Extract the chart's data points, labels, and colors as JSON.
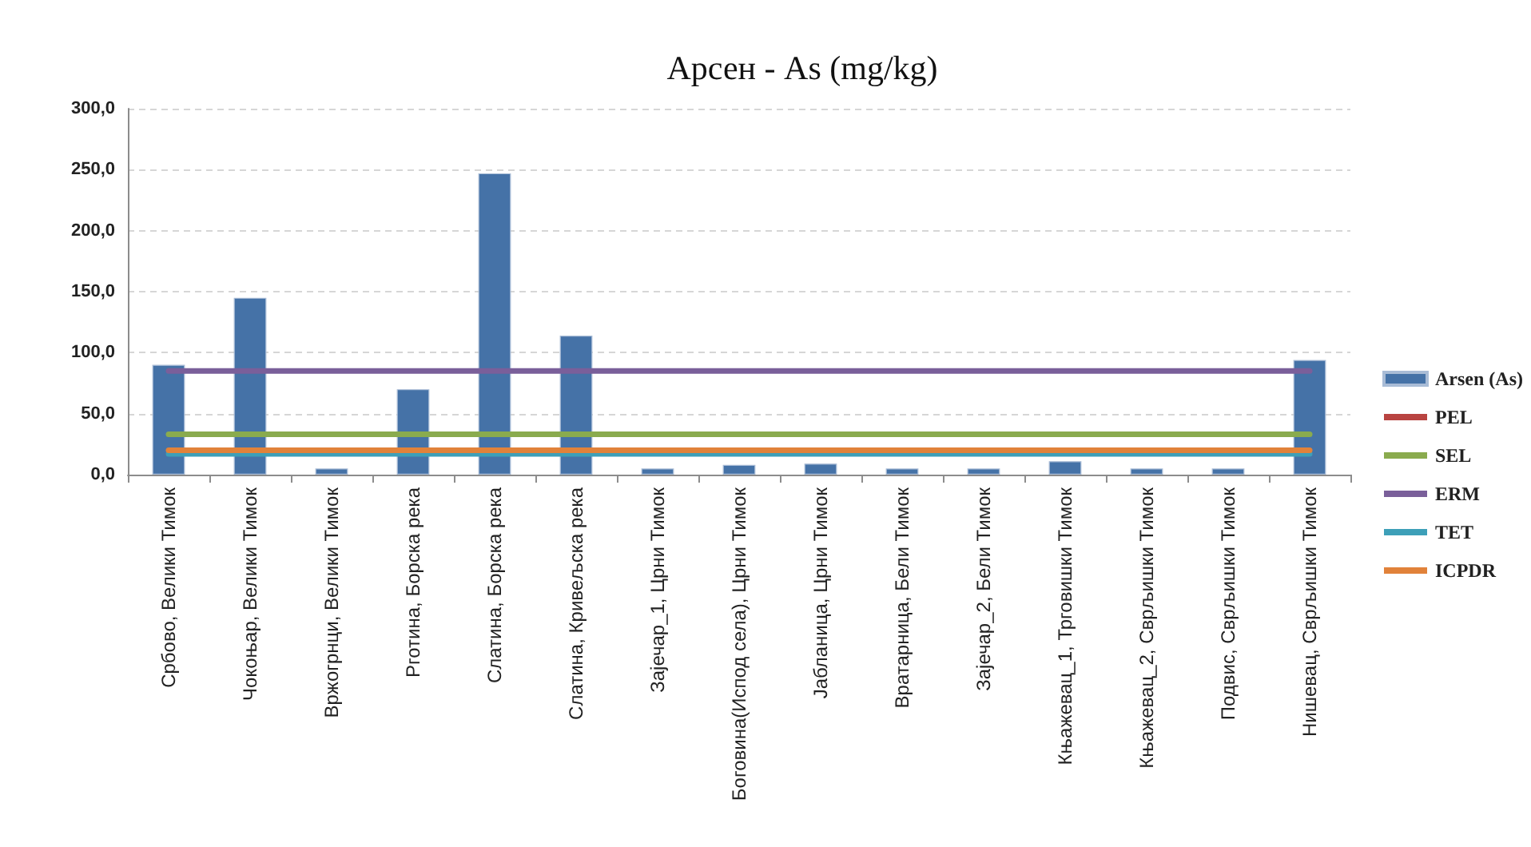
{
  "chart_data": {
    "type": "bar",
    "title": "Арсен - As (mg/kg)",
    "categories": [
      "Србово, Велики Тимок",
      "Чокоњар, Велики Тимок",
      "Вржогрнци, Велики Тимок",
      "Рготина, Борска река",
      "Слатина, Борска река",
      "Слатина, Кривељска река",
      "Зајечар_1, Црни Тимок",
      "Боговина(Испод села), Црни Тимок",
      "Јабланица, Црни Тимок",
      "Вратарница, Бели Тимок",
      "Зајечар_2, Бели Тимок",
      "Књажевац_1, Трговишки Тимок",
      "Књажевац_2, Сврљишки Тимок",
      "Подвис, Сврљишки Тимок",
      "Нишевац, Сврљишки Тимок"
    ],
    "series": [
      {
        "name": "Arsen (As)",
        "color": "#4572a7",
        "values": [
          90,
          145,
          5,
          70,
          247,
          114,
          5,
          8,
          9,
          5,
          5,
          11,
          5,
          5,
          94
        ]
      },
      {
        "name": "PEL",
        "type": "line",
        "color": "#b94441",
        "values": [
          null,
          null,
          null,
          null,
          null,
          null,
          null,
          null,
          null,
          null,
          null,
          null,
          null,
          null,
          null
        ]
      },
      {
        "name": "SEL",
        "type": "line",
        "color": "#8aab4e",
        "values": [
          33,
          33,
          33,
          33,
          33,
          33,
          33,
          33,
          33,
          33,
          33,
          33,
          33,
          33,
          33
        ]
      },
      {
        "name": "ERM",
        "type": "line",
        "color": "#7a5f9a",
        "values": [
          85,
          85,
          85,
          85,
          85,
          85,
          85,
          85,
          85,
          85,
          85,
          85,
          85,
          85,
          85
        ]
      },
      {
        "name": "TET",
        "type": "line",
        "color": "#3d9fb8",
        "values": [
          17,
          17,
          17,
          17,
          17,
          17,
          17,
          17,
          17,
          17,
          17,
          17,
          17,
          17,
          17
        ]
      },
      {
        "name": "ICPDR",
        "type": "line",
        "color": "#e1823a",
        "values": [
          20,
          20,
          20,
          20,
          20,
          20,
          20,
          20,
          20,
          20,
          20,
          20,
          20,
          20,
          20
        ]
      }
    ],
    "ylim": [
      0,
      300
    ],
    "yticks": [
      {
        "value": 0,
        "label": "0,0"
      },
      {
        "value": 50,
        "label": "50,0"
      },
      {
        "value": 100,
        "label": "100,0"
      },
      {
        "value": 150,
        "label": "150,0"
      },
      {
        "value": 200,
        "label": "200,0"
      },
      {
        "value": 250,
        "label": "250,0"
      },
      {
        "value": 300,
        "label": "300,0"
      }
    ],
    "grid": "y",
    "legend": "right",
    "marker": "none"
  }
}
